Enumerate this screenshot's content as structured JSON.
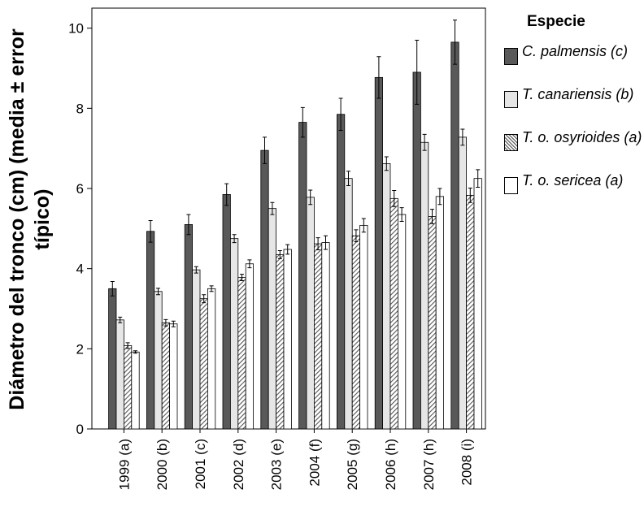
{
  "chart_data": {
    "type": "bar",
    "y_label": "Diámetro del tronco (cm) (media ± error típico)",
    "legend_title": "Especie",
    "categories": [
      "1999 (a)",
      "2000 (b)",
      "2001 (c)",
      "2002 (d)",
      "2003 (e)",
      "2004 (f)",
      "2005 (g)",
      "2006 (h)",
      "2007 (h)",
      "2008 (i)"
    ],
    "series": [
      {
        "name": "C. palmensis (c)",
        "color": "#595959",
        "values": [
          3.5,
          4.93,
          5.1,
          5.85,
          6.95,
          7.65,
          7.85,
          8.77,
          8.9,
          9.65
        ],
        "errors": [
          0.18,
          0.27,
          0.25,
          0.27,
          0.33,
          0.37,
          0.4,
          0.52,
          0.8,
          0.55
        ]
      },
      {
        "name": "T. canariensis (b)",
        "color": "#e6e6e6",
        "values": [
          2.72,
          3.43,
          3.97,
          4.75,
          5.5,
          5.78,
          6.25,
          6.62,
          7.15,
          7.28
        ],
        "errors": [
          0.07,
          0.08,
          0.08,
          0.1,
          0.15,
          0.18,
          0.18,
          0.17,
          0.2,
          0.2
        ]
      },
      {
        "name": "T. o. osyrioides (a)",
        "color": "#6e6e6e",
        "pattern": "hatch",
        "values": [
          2.08,
          2.65,
          3.25,
          3.78,
          4.35,
          4.62,
          4.82,
          5.75,
          5.3,
          5.83
        ],
        "errors": [
          0.07,
          0.08,
          0.1,
          0.08,
          0.1,
          0.15,
          0.15,
          0.2,
          0.18,
          0.18
        ]
      },
      {
        "name": "T. o. sericea (a)",
        "color": "#ffffff",
        "values": [
          1.92,
          2.62,
          3.5,
          4.12,
          4.48,
          4.65,
          5.08,
          5.35,
          5.8,
          6.25
        ],
        "errors": [
          0.03,
          0.07,
          0.07,
          0.1,
          0.12,
          0.17,
          0.17,
          0.17,
          0.2,
          0.22
        ]
      }
    ],
    "ylim": [
      0,
      10.5
    ],
    "yticks": [
      0,
      2,
      4,
      6,
      8,
      10
    ],
    "grid": false,
    "legend": "right"
  }
}
